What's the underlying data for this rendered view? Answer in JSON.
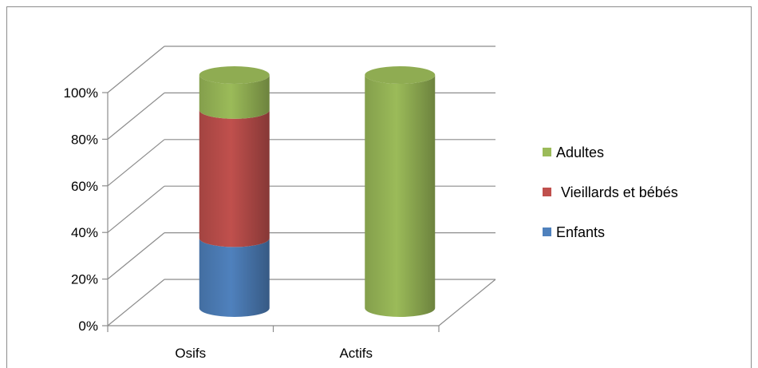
{
  "chart_data": {
    "type": "bar",
    "stacked": true,
    "percent_stacked": true,
    "three_d": true,
    "bar_shape": "cylinder",
    "title": "",
    "xlabel": "",
    "ylabel": "",
    "categories": [
      "Osifs",
      "Actifs"
    ],
    "series": [
      {
        "name": "Enfants",
        "values": [
          30,
          0
        ],
        "color": "#4f81bd"
      },
      {
        "name": "Vieillards et bébés",
        "values": [
          55,
          0
        ],
        "color": "#c0504d"
      },
      {
        "name": "Adultes",
        "values": [
          15,
          100
        ],
        "color": "#9bbb59"
      }
    ],
    "ylim": [
      0,
      100
    ],
    "y_ticks": [
      "0%",
      "20%",
      "40%",
      "60%",
      "80%",
      "100%"
    ],
    "grid": true,
    "legend_position": "right",
    "legend_order": [
      "Adultes",
      "Vieillards et bébés",
      "Enfants"
    ]
  }
}
